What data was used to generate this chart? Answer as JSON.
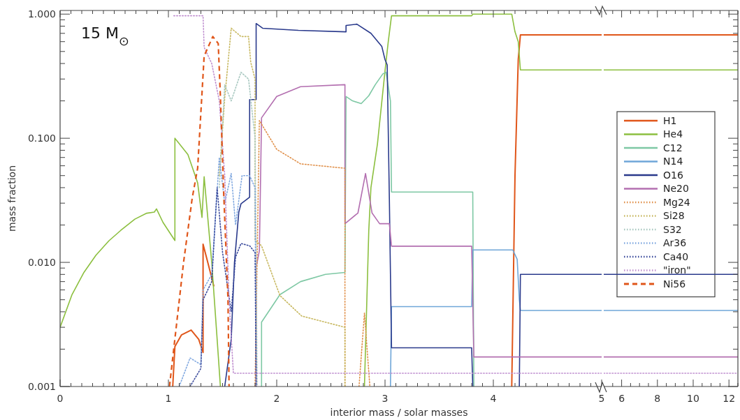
{
  "chart_data": [
    {
      "type": "line",
      "xlabel": "interior mass / solar masses",
      "ylabel": "mass fraction",
      "annotations": [
        "15 M$_{⊙}$"
      ],
      "log": "y",
      "legend": "right",
      "tick_labels": "xy",
      "xlim": [
        0,
        5
      ],
      "ylim": [
        0.001,
        1.07
      ],
      "xticks": [
        0,
        {
          "value": 0.1,
          "label": null
        },
        {
          "value": 0.2,
          "label": null
        },
        {
          "value": 0.3,
          "label": null
        },
        {
          "value": 0.4,
          "label": null
        },
        {
          "value": 0.5,
          "label": null
        },
        {
          "value": 0.6,
          "label": null
        },
        {
          "value": 0.7,
          "label": null
        },
        {
          "value": 0.8,
          "label": null
        },
        {
          "value": 0.9,
          "label": null
        },
        1,
        {
          "value": 1.1,
          "label": null
        },
        {
          "value": 1.2,
          "label": null
        },
        {
          "value": 1.3,
          "label": null
        },
        {
          "value": 1.4,
          "label": null
        },
        {
          "value": 1.5,
          "label": null
        },
        {
          "value": 1.6,
          "label": null
        },
        {
          "value": 1.7,
          "label": null
        },
        {
          "value": 1.8,
          "label": null
        },
        {
          "value": 1.9,
          "label": null
        },
        2,
        {
          "value": 2.1,
          "label": null
        },
        {
          "value": 2.2,
          "label": null
        },
        {
          "value": 2.3,
          "label": null
        },
        {
          "value": 2.4,
          "label": null
        },
        {
          "value": 2.5,
          "label": null
        },
        {
          "value": 2.6,
          "label": null
        },
        {
          "value": 2.7,
          "label": null
        },
        {
          "value": 2.8,
          "label": null
        },
        {
          "value": 2.9,
          "label": null
        },
        3,
        {
          "value": 3.1,
          "label": null
        },
        {
          "value": 3.2,
          "label": null
        },
        {
          "value": 3.3,
          "label": null
        },
        {
          "value": 3.4,
          "label": null
        },
        {
          "value": 3.5,
          "label": null
        },
        {
          "value": 3.6,
          "label": null
        },
        {
          "value": 3.7,
          "label": null
        },
        {
          "value": 3.8,
          "label": null
        },
        {
          "value": 3.9,
          "label": null
        },
        4,
        {
          "value": 4.1,
          "label": null
        },
        {
          "value": 4.2,
          "label": null
        },
        {
          "value": 4.3,
          "label": null
        },
        {
          "value": 4.4,
          "label": null
        },
        {
          "value": 4.5,
          "label": null
        },
        {
          "value": 4.6,
          "label": null
        },
        {
          "value": 4.7,
          "label": null
        },
        {
          "value": 4.8,
          "label": null
        },
        {
          "value": 4.9,
          "label": null
        },
        5
      ],
      "yticks": [
        {
          "value": 0.001,
          "label": "0.001"
        },
        {
          "value": 0.002,
          "label": null
        },
        {
          "value": 0.003,
          "label": null
        },
        {
          "value": 0.004,
          "label": null
        },
        {
          "value": 0.005,
          "label": null
        },
        {
          "value": 0.006,
          "label": null
        },
        {
          "value": 0.007,
          "label": null
        },
        {
          "value": 0.008,
          "label": null
        },
        {
          "value": 0.009,
          "label": null
        },
        {
          "value": 0.01,
          "label": "0.010"
        },
        {
          "value": 0.02,
          "label": null
        },
        {
          "value": 0.03,
          "label": null
        },
        {
          "value": 0.04,
          "label": null
        },
        {
          "value": 0.05,
          "label": null
        },
        {
          "value": 0.06,
          "label": null
        },
        {
          "value": 0.07,
          "label": null
        },
        {
          "value": 0.08,
          "label": null
        },
        {
          "value": 0.09,
          "label": null
        },
        {
          "value": 0.1,
          "label": "0.100"
        },
        {
          "value": 0.2,
          "label": null
        },
        {
          "value": 0.3,
          "label": null
        },
        {
          "value": 0.4,
          "label": null
        },
        {
          "value": 0.5,
          "label": null
        },
        {
          "value": 0.6,
          "label": null
        },
        {
          "value": 0.7,
          "label": null
        },
        {
          "value": 0.8,
          "label": null
        },
        {
          "value": 0.9,
          "label": null
        },
        {
          "value": 1,
          "label": "1.000"
        }
      ],
      "series": [
        {
          "name": "H1",
          "color": "#e0561a",
          "line_style": "solid",
          "x": [
            1.04,
            1.06,
            1.12,
            1.21,
            1.28,
            1.32,
            1.32,
            1.37,
            1.42,
            1.43,
            4.17,
            4.2,
            4.23,
            4.25,
            5
          ],
          "values": [
            0.001,
            0.0021,
            0.0026,
            0.00285,
            0.0024,
            0.00188,
            0.014,
            0.0095,
            0.0064,
            null,
            0.001,
            0.05,
            0.43,
            0.68,
            0.68
          ]
        },
        {
          "name": "He4",
          "color": "#8cbf3f",
          "line_style": "solid",
          "x": [
            0,
            0.11,
            0.22,
            0.33,
            0.45,
            0.56,
            0.69,
            0.8,
            0.87,
            0.89,
            0.95,
            1.06,
            1.06,
            1.18,
            1.27,
            1.31,
            1.33,
            1.4,
            1.45,
            1.48,
            1.49,
            2.81,
            2.85,
            2.87,
            2.93,
            3.0,
            3.03,
            3.06,
            3.8,
            3.81,
            4.17,
            4.2,
            4.23,
            4.25,
            5
          ],
          "values": [
            0.003,
            0.0055,
            0.0083,
            0.0114,
            0.0149,
            0.0181,
            0.0223,
            0.0249,
            0.0254,
            0.027,
            0.021,
            0.015,
            0.1,
            0.074,
            0.0437,
            0.023,
            0.049,
            0.01,
            0.0024,
            0.001,
            null,
            0.001,
            0.018,
            0.04,
            0.09,
            0.35,
            0.6,
            0.97,
            0.97,
            1.0,
            1.0,
            0.72,
            0.6,
            0.355,
            0.355
          ]
        },
        {
          "name": "C12",
          "color": "#7ec8a4",
          "line_style": "solid",
          "x": [
            1.86,
            1.86,
            2.03,
            2.22,
            2.45,
            2.63,
            2.64,
            2.7,
            2.78,
            2.85,
            2.91,
            2.98,
            3.01,
            3.05,
            3.06,
            3.81,
            3.82
          ],
          "values": [
            0.001,
            0.0033,
            0.0055,
            0.007,
            0.008,
            0.0083,
            0.217,
            0.2,
            0.19,
            0.22,
            0.27,
            0.33,
            0.34,
            0.2,
            0.0369,
            0.0369,
            0.001
          ]
        },
        {
          "name": "N14",
          "color": "#6fa6d8",
          "line_style": "solid",
          "x": [
            3.05,
            3.06,
            3.8,
            3.81,
            4.18,
            4.22,
            4.24,
            4.25,
            5
          ],
          "values": [
            0.001,
            0.0044,
            0.0044,
            0.0126,
            0.0126,
            0.0106,
            0.005,
            0.0041,
            0.0041
          ]
        },
        {
          "name": "O16",
          "color": "#2a3a8c",
          "line_style": "solid",
          "x": [
            1.52,
            1.58,
            1.61,
            1.65,
            1.67,
            1.75,
            1.75,
            1.81,
            1.81,
            1.87,
            2.2,
            2.64,
            2.64,
            2.74,
            2.87,
            2.97,
            3.0,
            3.02,
            3.04,
            3.06,
            3.8,
            3.81,
            4.0,
            4.24,
            4.25,
            5
          ],
          "values": [
            0.001,
            0.0024,
            0.01,
            0.0254,
            0.0296,
            0.0335,
            0.205,
            0.205,
            0.84,
            0.77,
            0.74,
            0.72,
            0.81,
            0.83,
            0.7,
            0.55,
            0.43,
            0.39,
            0.0327,
            0.00205,
            0.00205,
            0.001,
            null,
            0.001,
            0.008,
            0.008
          ]
        },
        {
          "name": "Ne20",
          "color": "#b36fb0",
          "line_style": "solid",
          "x": [
            1.81,
            1.81,
            1.84,
            1.86,
            2.0,
            2.22,
            2.63,
            2.63,
            2.75,
            2.82,
            2.88,
            2.95,
            3.04,
            3.06,
            3.8,
            3.82,
            5
          ],
          "values": [
            0.001,
            0.0091,
            0.0124,
            0.146,
            0.217,
            0.26,
            0.27,
            0.0205,
            0.025,
            0.052,
            0.025,
            0.0205,
            0.0205,
            0.0135,
            0.0135,
            0.00173,
            0.00173
          ]
        },
        {
          "name": "Mg24",
          "color": "#e0904a",
          "line_style": "dotted",
          "x": [
            1.8,
            1.84,
            2.0,
            2.22,
            2.63,
            2.63,
            2.7,
            2.76,
            2.81,
            2.86
          ],
          "values": [
            0.001,
            0.139,
            0.0814,
            0.0622,
            0.0573,
            0.001,
            null,
            0.001,
            0.0039,
            0.001
          ]
        },
        {
          "name": "Si28",
          "color": "#c8b860",
          "line_style": "dotted",
          "x": [
            1.47,
            1.52,
            1.58,
            1.67,
            1.74,
            1.76,
            1.8,
            1.8,
            1.86,
            2.03,
            2.23,
            2.63,
            2.63
          ],
          "values": [
            0.05,
            0.21,
            0.77,
            0.66,
            0.66,
            0.41,
            0.3,
            0.015,
            0.0136,
            0.0054,
            0.0037,
            0.003,
            0.001
          ]
        },
        {
          "name": "S32",
          "color": "#a8c8c0",
          "line_style": "dotted",
          "x": [
            1.47,
            1.52,
            1.58,
            1.67,
            1.74,
            1.8,
            1.82
          ],
          "values": [
            0.04,
            0.27,
            0.2,
            0.34,
            0.3,
            0.1,
            0.001
          ]
        },
        {
          "name": "Ar36",
          "color": "#80a8e0",
          "line_style": "dotted",
          "x": [
            1.1,
            1.2,
            1.3,
            1.32,
            1.4,
            1.47,
            1.52,
            1.58,
            1.62,
            1.68,
            1.75,
            1.8,
            1.81
          ],
          "values": [
            0.001,
            0.0017,
            0.0015,
            0.006,
            0.008,
            0.07,
            0.03,
            0.052,
            0.02,
            0.05,
            0.05,
            0.04,
            0.001
          ]
        },
        {
          "name": "Ca40",
          "color": "#3a4a9c",
          "line_style": "dotted",
          "x": [
            1.2,
            1.3,
            1.32,
            1.4,
            1.45,
            1.5,
            1.58,
            1.62,
            1.67,
            1.75,
            1.8,
            1.81
          ],
          "values": [
            0.001,
            0.0014,
            0.005,
            0.007,
            0.04,
            0.012,
            0.004,
            0.011,
            0.0142,
            0.0136,
            0.012,
            0.001
          ]
        },
        {
          "name": "\"iron\"",
          "color": "#c090d0",
          "line_style": "dotted",
          "x": [
            1.05,
            1.32,
            1.33,
            1.4,
            1.47,
            1.52,
            1.56,
            1.6,
            5
          ],
          "values": [
            0.97,
            0.97,
            0.54,
            0.4,
            0.2,
            0.05,
            0.005,
            0.00128,
            0.00128
          ]
        },
        {
          "name": "Ni56",
          "color": "#e0561a",
          "line_style": "dashed",
          "x": [
            1.01,
            1.14,
            1.22,
            1.27,
            1.33,
            1.41,
            1.46,
            1.48,
            1.51,
            1.55,
            1.56
          ],
          "values": [
            0.001,
            0.01,
            0.033,
            0.0574,
            0.46,
            0.66,
            0.58,
            0.217,
            0.037,
            0.0051,
            0.001
          ]
        }
      ]
    },
    {
      "type": "line",
      "log": "y",
      "tick_labels": "x",
      "xlim": [
        5,
        12.5
      ],
      "ylim": [
        0.001,
        1.07
      ],
      "xticks": [
        {
          "value": 5.5,
          "label": null
        },
        6,
        {
          "value": 6.5,
          "label": null
        },
        {
          "value": 7,
          "label": null
        },
        {
          "value": 7.5,
          "label": null
        },
        8,
        {
          "value": 8.5,
          "label": null
        },
        {
          "value": 9,
          "label": null
        },
        {
          "value": 9.5,
          "label": null
        },
        10,
        {
          "value": 10.5,
          "label": null
        },
        {
          "value": 11,
          "label": null
        },
        {
          "value": 11.5,
          "label": null
        },
        12,
        {
          "value": 12.5,
          "label": null
        }
      ],
      "yticks": [
        {
          "value": 0.001,
          "label": null
        },
        {
          "value": 0.002,
          "label": null
        },
        {
          "value": 0.003,
          "label": null
        },
        {
          "value": 0.004,
          "label": null
        },
        {
          "value": 0.005,
          "label": null
        },
        {
          "value": 0.006,
          "label": null
        },
        {
          "value": 0.007,
          "label": null
        },
        {
          "value": 0.008,
          "label": null
        },
        {
          "value": 0.009,
          "label": null
        },
        {
          "value": 0.01,
          "label": null
        },
        {
          "value": 0.02,
          "label": null
        },
        {
          "value": 0.03,
          "label": null
        },
        {
          "value": 0.04,
          "label": null
        },
        {
          "value": 0.05,
          "label": null
        },
        {
          "value": 0.06,
          "label": null
        },
        {
          "value": 0.07,
          "label": null
        },
        {
          "value": 0.08,
          "label": null
        },
        {
          "value": 0.09,
          "label": null
        },
        {
          "value": 0.1,
          "label": null
        },
        {
          "value": 0.2,
          "label": null
        },
        {
          "value": 0.3,
          "label": null
        },
        {
          "value": 0.4,
          "label": null
        },
        {
          "value": 0.5,
          "label": null
        },
        {
          "value": 0.6,
          "label": null
        },
        {
          "value": 0.7,
          "label": null
        },
        {
          "value": 0.8,
          "label": null
        },
        {
          "value": 0.9,
          "label": null
        },
        {
          "value": 1,
          "label": null
        }
      ],
      "series": [
        {
          "color": "#e0561a",
          "line_style": "solid",
          "x": [
            5,
            12.5
          ],
          "values": [
            0.68,
            0.68
          ]
        },
        {
          "color": "#8cbf3f",
          "line_style": "solid",
          "x": [
            5,
            12.5
          ],
          "values": [
            0.355,
            0.355
          ]
        },
        {
          "color": "#6fa6d8",
          "line_style": "solid",
          "x": [
            5,
            12.5
          ],
          "values": [
            0.0041,
            0.0041
          ]
        },
        {
          "color": "#2a3a8c",
          "line_style": "solid",
          "x": [
            5,
            12.5
          ],
          "values": [
            0.008,
            0.008
          ]
        },
        {
          "color": "#b36fb0",
          "line_style": "solid",
          "x": [
            5,
            12.5
          ],
          "values": [
            0.00173,
            0.00173
          ]
        },
        {
          "color": "#c090d0",
          "line_style": "dotted",
          "x": [
            5,
            12.5
          ],
          "values": [
            0.00128,
            0.00128
          ]
        }
      ]
    }
  ]
}
